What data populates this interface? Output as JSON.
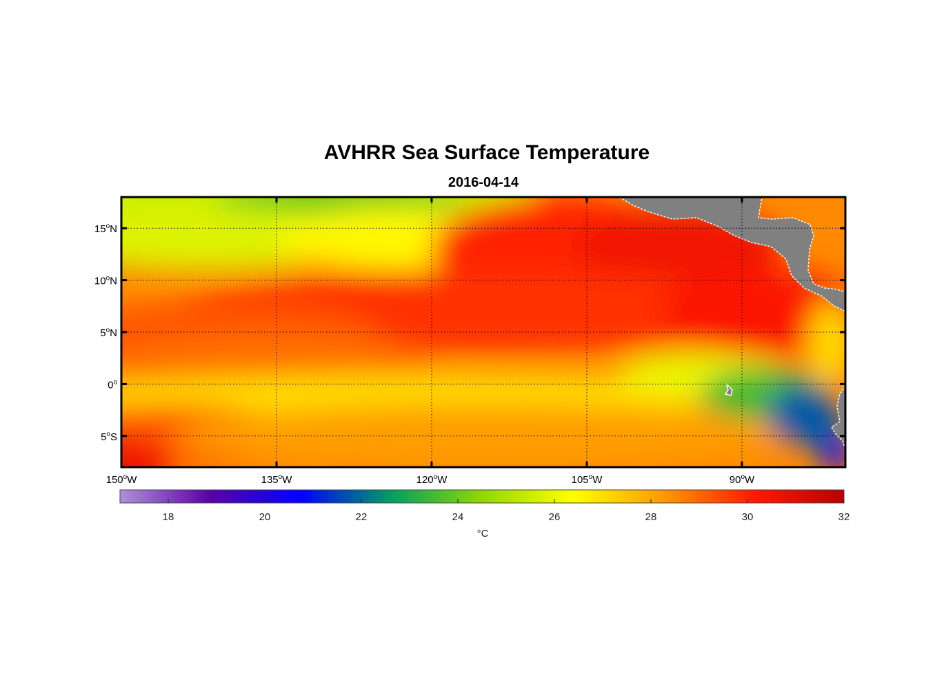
{
  "title": "AVHRR Sea Surface Temperature",
  "subtitle": "2016-04-14",
  "chart_data": {
    "type": "heatmap",
    "x_axis": {
      "range": [
        -150,
        -80
      ],
      "ticks": [
        {
          "value": -150,
          "label": "150",
          "sup": "o",
          "suffix": "W"
        },
        {
          "value": -135,
          "label": "135",
          "sup": "o",
          "suffix": "W"
        },
        {
          "value": -120,
          "label": "120",
          "sup": "o",
          "suffix": "W"
        },
        {
          "value": -105,
          "label": "105",
          "sup": "o",
          "suffix": "W"
        },
        {
          "value": -90,
          "label": "90",
          "sup": "o",
          "suffix": "W"
        }
      ]
    },
    "y_axis": {
      "range": [
        -8,
        18
      ],
      "ticks": [
        {
          "value": 15,
          "label": "15",
          "sup": "o",
          "suffix": "N"
        },
        {
          "value": 10,
          "label": "10",
          "sup": "o",
          "suffix": "N"
        },
        {
          "value": 5,
          "label": "5",
          "sup": "o",
          "suffix": "N"
        },
        {
          "value": 0,
          "label": "0",
          "sup": "o",
          "suffix": ""
        },
        {
          "value": -5,
          "label": "5",
          "sup": "o",
          "suffix": "S"
        }
      ]
    },
    "grid": true,
    "colorbar": {
      "min": 17,
      "max": 32,
      "ticks": [
        18,
        20,
        22,
        24,
        26,
        28,
        30,
        32
      ],
      "tick_labels": [
        "18",
        "20",
        "22",
        "24",
        "26",
        "28",
        "30",
        "32"
      ],
      "units": "°C",
      "colors": [
        "#b090d8",
        "#5a00a8",
        "#0000ff",
        "#00a060",
        "#90d800",
        "#ffff00",
        "#ff9a00",
        "#ff1a00",
        "#b80000"
      ]
    },
    "land_color": "#808080",
    "sst_blobs": [
      {
        "lon": -150,
        "lat": 18,
        "rx": 40,
        "ry": 6,
        "temp": 25.5
      },
      {
        "lon": -129,
        "lat": 17,
        "rx": 12,
        "ry": 3,
        "temp": 24.0
      },
      {
        "lon": -142,
        "lat": 14,
        "rx": 16,
        "ry": 3,
        "temp": 25.8
      },
      {
        "lon": -123,
        "lat": 14,
        "rx": 12,
        "ry": 3,
        "temp": 26.5
      },
      {
        "lon": -108,
        "lat": 13,
        "rx": 12,
        "ry": 5,
        "temp": 30.0
      },
      {
        "lon": -96,
        "lat": 13,
        "rx": 10,
        "ry": 4,
        "temp": 30.5
      },
      {
        "lon": -115,
        "lat": 7,
        "rx": 30,
        "ry": 4,
        "temp": 29.8
      },
      {
        "lon": -88,
        "lat": 7,
        "rx": 10,
        "ry": 4,
        "temp": 30.2
      },
      {
        "lon": -140,
        "lat": 5,
        "rx": 15,
        "ry": 3,
        "temp": 29.3
      },
      {
        "lon": -136,
        "lat": 2,
        "rx": 16,
        "ry": 3,
        "temp": 28.9
      },
      {
        "lon": -120,
        "lat": -1,
        "rx": 38,
        "ry": 2,
        "temp": 27.0
      },
      {
        "lon": -145,
        "lat": -5,
        "rx": 12,
        "ry": 3,
        "temp": 29.2
      },
      {
        "lon": -150,
        "lat": -8,
        "rx": 5,
        "ry": 3,
        "temp": 30.5
      },
      {
        "lon": -115,
        "lat": -5,
        "rx": 30,
        "ry": 3,
        "temp": 28.2
      },
      {
        "lon": -94,
        "lat": 1,
        "rx": 8,
        "ry": 2,
        "temp": 26.0
      },
      {
        "lon": -88,
        "lat": -1,
        "rx": 6,
        "ry": 2.5,
        "temp": 23.5
      },
      {
        "lon": -84,
        "lat": -3,
        "rx": 3.5,
        "ry": 3,
        "temp": 21.8
      },
      {
        "lon": -81,
        "lat": -6.5,
        "rx": 1.5,
        "ry": 2,
        "temp": 20.5
      },
      {
        "lon": -81.5,
        "lat": 4,
        "rx": 2,
        "ry": 4,
        "temp": 27.0
      }
    ],
    "sst_background": 28.5
  }
}
